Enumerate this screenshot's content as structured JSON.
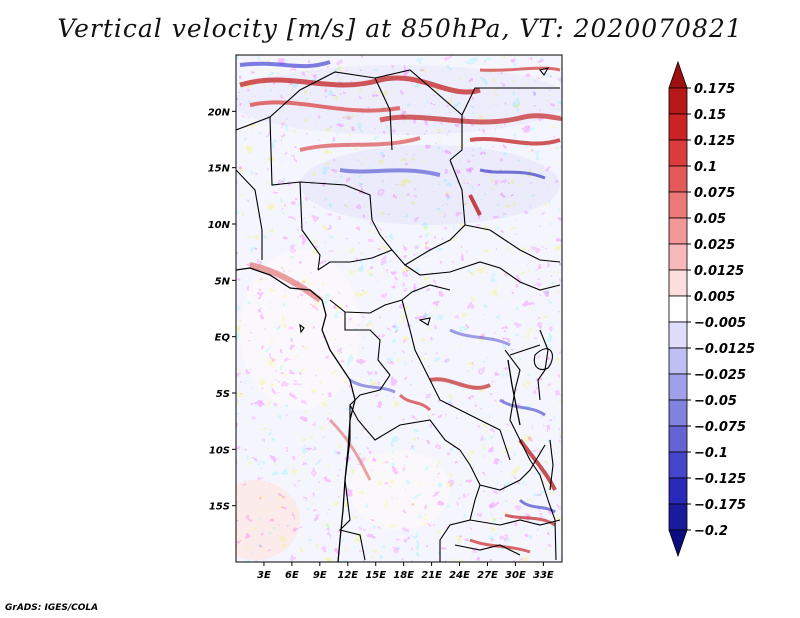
{
  "title": "Vertical velocity [m/s] at 850hPa, VT: 2020070821",
  "credit": "GrADS: IGES/COLA",
  "chart_data": {
    "type": "heatmap",
    "title": "Vertical velocity [m/s] at 850hPa, VT: 2020070821",
    "variable": "Vertical velocity",
    "units": "m/s",
    "level": "850hPa",
    "valid_time": "2020070821",
    "lon_range": [
      0,
      35
    ],
    "lat_range": [
      -20,
      25
    ],
    "lon_ticks": [
      3,
      6,
      9,
      12,
      15,
      18,
      21,
      24,
      27,
      30,
      33
    ],
    "lon_tick_labels": [
      "3E",
      "6E",
      "9E",
      "12E",
      "15E",
      "18E",
      "21E",
      "24E",
      "27E",
      "30E",
      "33E"
    ],
    "lat_ticks": [
      20,
      15,
      10,
      5,
      0,
      -5,
      -10,
      -15
    ],
    "lat_tick_labels": [
      "20N",
      "15N",
      "10N",
      "5N",
      "EQ",
      "5S",
      "10S",
      "15S"
    ],
    "colorbar_levels": [
      0.175,
      0.15,
      0.125,
      0.1,
      0.075,
      0.05,
      0.025,
      0.0125,
      0.005,
      -0.005,
      -0.0125,
      -0.025,
      -0.05,
      -0.075,
      -0.1,
      -0.125,
      -0.175,
      -0.2
    ],
    "colorbar_labels": [
      "0.175",
      "0.15",
      "0.125",
      "0.1",
      "0.075",
      "0.05",
      "0.025",
      "0.0125",
      "0.005",
      "−0.005",
      "−0.0125",
      "−0.025",
      "−0.05",
      "−0.075",
      "−0.1",
      "−0.125",
      "−0.175",
      "−0.2"
    ],
    "colorbar_colors": [
      "#a01010",
      "#b81818",
      "#cc2424",
      "#dc3c3c",
      "#e45a5a",
      "#ec7878",
      "#f29898",
      "#f7b9b9",
      "#fcdede",
      "#ffffff",
      "#dedefc",
      "#bfbff4",
      "#a0a0ea",
      "#8282e0",
      "#6464d6",
      "#4646cc",
      "#2a2ab8",
      "#1a1a9c",
      "#0c0c80"
    ],
    "colorbar_extend": "both"
  }
}
